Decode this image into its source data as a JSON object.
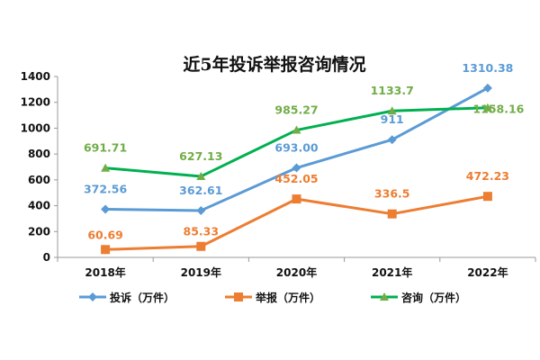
{
  "chart_data": {
    "type": "line",
    "title": "近5年投诉举报咨询情况",
    "categories": [
      "2018年",
      "2019年",
      "2020年",
      "2021年",
      "2022年"
    ],
    "ylim": [
      0,
      1400
    ],
    "yticks": [
      0,
      200,
      400,
      600,
      800,
      1000,
      1200,
      1400
    ],
    "grid": false,
    "legend_position": "bottom",
    "series": [
      {
        "name": "投诉（万件）",
        "color": "#5b9bd5",
        "label_color": "#5b9bd5",
        "marker": "diamond",
        "values": [
          372.56,
          362.61,
          693.0,
          911,
          1310.38
        ],
        "labels": [
          "372.56",
          "362.61",
          "693.00",
          "911",
          "1310.38"
        ]
      },
      {
        "name": "举报（万件）",
        "color": "#ed7d31",
        "label_color": "#ed7d31",
        "marker": "square",
        "values": [
          60.69,
          85.33,
          452.05,
          336.5,
          472.23
        ],
        "labels": [
          "60.69",
          "85.33",
          "452.05",
          "336.5",
          "472.23"
        ]
      },
      {
        "name": "咨询（万件）",
        "color": "#00b050",
        "label_color": "#70ad47",
        "marker": "triangle",
        "values": [
          691.71,
          627.13,
          985.27,
          1133.7,
          1158.16
        ],
        "labels": [
          "691.71",
          "627.13",
          "985.27",
          "1133.7",
          "1158.16"
        ]
      }
    ]
  }
}
